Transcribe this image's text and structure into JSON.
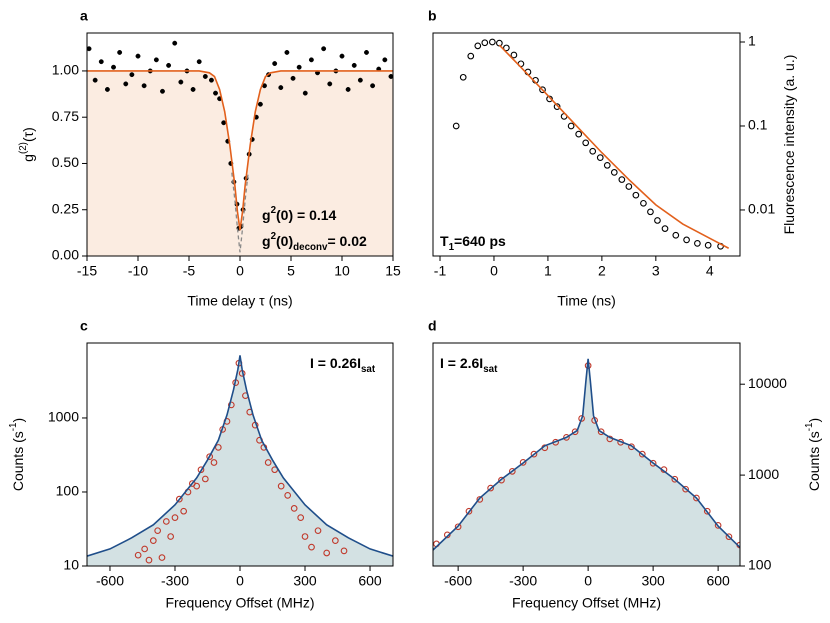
{
  "chart_data": [
    {
      "type": "scatter",
      "panel_label": "a",
      "xlabel": "Time delay τ (ns)",
      "ylabel": [
        {
          "text": "g"
        },
        {
          "text": "(2)",
          "shift": "sup"
        },
        {
          "text": "(τ)"
        }
      ],
      "xlim": [
        -15,
        15
      ],
      "ylim": [
        0,
        1.205
      ],
      "xticks": [
        -15,
        -10,
        -5,
        0,
        5,
        10,
        15
      ],
      "yticks": [
        {
          "value": 0,
          "label": "0.00"
        },
        {
          "value": 0.25,
          "label": "0.25"
        },
        {
          "value": 0.5,
          "label": "0.50"
        },
        {
          "value": 0.75,
          "label": "0.75"
        },
        {
          "value": 1,
          "label": "1.00"
        }
      ],
      "fill": "#fbece1",
      "points": {
        "color": "#000000",
        "hollow": false,
        "x": [
          -14.8,
          -14.2,
          -13.6,
          -13,
          -12.4,
          -11.8,
          -11.2,
          -10.6,
          -10,
          -9.4,
          -8.8,
          -8.2,
          -7.6,
          -7,
          -6.4,
          -5.8,
          -5.2,
          -4.6,
          -4,
          -3.4,
          -2.8,
          -2.4,
          -2,
          -1.6,
          -1.2,
          -0.9,
          -0.6,
          -0.3,
          -0.1,
          0.1,
          0.3,
          0.6,
          0.9,
          1.2,
          1.6,
          2,
          2.4,
          2.8,
          3.4,
          4,
          4.6,
          5.2,
          5.8,
          6.4,
          7,
          7.6,
          8.2,
          8.8,
          9.4,
          10,
          10.6,
          11.2,
          11.8,
          12.4,
          13,
          13.6,
          14.2,
          14.8
        ],
        "y": [
          1.12,
          0.95,
          1.05,
          0.9,
          1.02,
          1.1,
          0.93,
          0.98,
          1.08,
          0.92,
          1.0,
          1.06,
          0.89,
          1.03,
          1.15,
          0.94,
          1.0,
          0.9,
          1.05,
          0.97,
          0.95,
          0.88,
          0.85,
          0.72,
          0.62,
          0.5,
          0.4,
          0.28,
          0.15,
          0.16,
          0.25,
          0.42,
          0.55,
          0.63,
          0.75,
          0.82,
          0.92,
          0.98,
          1.04,
          0.91,
          1.1,
          0.96,
          1.02,
          0.88,
          1.06,
          0.99,
          1.12,
          0.93,
          1.0,
          1.08,
          0.9,
          1.03,
          0.95,
          1.1,
          0.92,
          1.01,
          1.06,
          0.97
        ]
      },
      "fit": {
        "color": "#e2601c",
        "x": [
          -15,
          -4,
          -3,
          -2.5,
          -2,
          -1.5,
          -1,
          -0.5,
          -0.25,
          0,
          0.25,
          0.5,
          1,
          1.5,
          2,
          2.5,
          3,
          4,
          15
        ],
        "y": [
          1,
          1,
          0.99,
          0.97,
          0.9,
          0.78,
          0.6,
          0.38,
          0.24,
          0.14,
          0.24,
          0.38,
          0.6,
          0.78,
          0.9,
          0.97,
          0.99,
          1,
          1
        ]
      },
      "deconv": {
        "color": "#888888",
        "x": [
          -0.8,
          -0.5,
          -0.25,
          0,
          0.25,
          0.5,
          0.8
        ],
        "y": [
          0.45,
          0.3,
          0.15,
          0.02,
          0.15,
          0.3,
          0.45
        ]
      },
      "annotations": [
        [
          {
            "text": "g"
          },
          {
            "text": "2",
            "shift": "sup"
          },
          {
            "text": "(0)"
          },
          {
            "text": "   = 0.14"
          }
        ],
        [
          {
            "text": "g"
          },
          {
            "text": "2",
            "shift": "sup"
          },
          {
            "text": "(0)"
          },
          {
            "text": "deconv",
            "shift": "sub"
          },
          {
            "text": "= 0.02"
          }
        ]
      ]
    },
    {
      "type": "scatter",
      "panel_label": "b",
      "xlabel": "Time (ns)",
      "ylabel": [
        {
          "text": "Fluorescence intensity (a. u.)"
        }
      ],
      "ylog": true,
      "yaxis_side": "right",
      "xlim": [
        -1.13,
        4.56
      ],
      "ylim": [
        0.00283,
        1.28
      ],
      "xticks": [
        -1,
        0,
        1,
        2,
        3,
        4
      ],
      "yticks": [
        0.01,
        0.1,
        1
      ],
      "points": {
        "color": "#000000",
        "hollow": true,
        "x": [
          -0.7,
          -0.57,
          -0.43,
          -0.3,
          -0.17,
          -0.03,
          0.1,
          0.23,
          0.37,
          0.5,
          0.63,
          0.77,
          0.9,
          1.03,
          1.17,
          1.3,
          1.43,
          1.57,
          1.7,
          1.83,
          1.97,
          2.1,
          2.23,
          2.37,
          2.5,
          2.63,
          2.77,
          2.9,
          3.03,
          3.17,
          3.37,
          3.57,
          3.77,
          3.97,
          4.2
        ],
        "y": [
          0.1,
          0.38,
          0.68,
          0.9,
          0.98,
          1.0,
          0.97,
          0.85,
          0.7,
          0.55,
          0.44,
          0.35,
          0.27,
          0.21,
          0.17,
          0.13,
          0.1,
          0.08,
          0.063,
          0.05,
          0.042,
          0.034,
          0.028,
          0.023,
          0.019,
          0.015,
          0.012,
          0.0095,
          0.0075,
          0.006,
          0.005,
          0.0044,
          0.004,
          0.0038,
          0.0037
        ]
      },
      "fit": {
        "color": "#e2601c",
        "x": [
          0.1,
          0.5,
          1,
          1.5,
          2,
          2.5,
          3,
          3.5,
          4,
          4.35
        ],
        "y": [
          0.92,
          0.5,
          0.23,
          0.105,
          0.048,
          0.023,
          0.0115,
          0.0068,
          0.0046,
          0.0035
        ]
      },
      "annotations": [
        [
          {
            "text": "T"
          },
          {
            "text": "1",
            "shift": "sub"
          },
          {
            "text": "=640 ps"
          }
        ]
      ]
    },
    {
      "type": "scatter",
      "panel_label": "c",
      "xlabel": "Frequency Offset (MHz)",
      "ylabel": [
        {
          "text": "Counts (s"
        },
        {
          "text": "-1",
          "shift": "sup"
        },
        {
          "text": ")"
        }
      ],
      "ylog": true,
      "xlim": [
        -706,
        706
      ],
      "ylim": [
        10,
        10300
      ],
      "xticks": [
        -600,
        -300,
        0,
        300,
        600
      ],
      "yticks": [
        10,
        100,
        1000
      ],
      "fill": "#d3e1e3",
      "points": {
        "color": "#c0392b",
        "hollow": true,
        "x": [
          -470,
          -440,
          -420,
          -400,
          -380,
          -360,
          -340,
          -320,
          -300,
          -280,
          -260,
          -240,
          -220,
          -200,
          -180,
          -160,
          -140,
          -120,
          -100,
          -80,
          -60,
          -40,
          -20,
          -5,
          10,
          25,
          45,
          70,
          90,
          110,
          130,
          160,
          190,
          220,
          250,
          280,
          300,
          330,
          360,
          400,
          440,
          480
        ],
        "y": [
          14,
          17,
          12,
          22,
          30,
          13,
          40,
          25,
          45,
          80,
          55,
          100,
          130,
          120,
          200,
          150,
          300,
          250,
          400,
          700,
          900,
          1500,
          3000,
          5500,
          4000,
          2000,
          1200,
          800,
          500,
          400,
          250,
          200,
          120,
          90,
          60,
          45,
          25,
          18,
          30,
          15,
          22,
          16
        ]
      },
      "fit": {
        "color": "#1f4e8a",
        "x": [
          -706,
          -600,
          -500,
          -400,
          -300,
          -200,
          -150,
          -100,
          -60,
          -30,
          -10,
          0,
          10,
          30,
          60,
          100,
          150,
          200,
          300,
          400,
          500,
          600,
          706
        ],
        "y": [
          13.6,
          17,
          24,
          36,
          67,
          155,
          270,
          500,
          1100,
          2400,
          4500,
          7000,
          4500,
          2400,
          1100,
          500,
          270,
          155,
          67,
          36,
          24,
          17,
          13.6
        ]
      },
      "annotations": [
        [
          {
            "text": "I = 0.26I"
          },
          {
            "text": "sat",
            "shift": "sub"
          }
        ]
      ]
    },
    {
      "type": "scatter",
      "panel_label": "d",
      "xlabel": "Frequency Offset (MHz)",
      "ylabel": [
        {
          "text": "Counts (s"
        },
        {
          "text": "-1",
          "shift": "sup"
        },
        {
          "text": ")"
        }
      ],
      "ylog": true,
      "yaxis_side": "right",
      "xlim": [
        -716,
        701
      ],
      "ylim": [
        100,
        28400
      ],
      "xticks": [
        -600,
        -300,
        0,
        300,
        600
      ],
      "yticks": [
        100,
        1000,
        10000
      ],
      "fill": "#d3e1e3",
      "points": {
        "color": "#c0392b",
        "hollow": true,
        "x": [
          -700,
          -650,
          -600,
          -550,
          -500,
          -450,
          -400,
          -350,
          -300,
          -250,
          -200,
          -150,
          -100,
          -60,
          -30,
          0,
          30,
          60,
          100,
          150,
          200,
          250,
          300,
          350,
          400,
          450,
          500,
          550,
          600,
          650,
          700
        ],
        "y": [
          175,
          220,
          270,
          400,
          540,
          720,
          880,
          1100,
          1380,
          1700,
          2000,
          2300,
          2600,
          3000,
          4200,
          16000,
          4000,
          3000,
          2500,
          2300,
          2050,
          1700,
          1350,
          1150,
          900,
          700,
          560,
          400,
          280,
          210,
          170
        ]
      },
      "fit": {
        "color": "#1f4e8a",
        "x": [
          -716,
          -600,
          -500,
          -400,
          -300,
          -200,
          -100,
          -50,
          -25,
          -10,
          0,
          10,
          25,
          50,
          100,
          200,
          300,
          400,
          500,
          600,
          701
        ],
        "y": [
          150,
          275,
          560,
          900,
          1360,
          2100,
          2600,
          3100,
          4500,
          11000,
          19000,
          11000,
          4500,
          3100,
          2600,
          2100,
          1360,
          900,
          560,
          275,
          160
        ]
      },
      "annotations": [
        [
          {
            "text": "I = 2.6I"
          },
          {
            "text": "sat",
            "shift": "sub"
          }
        ]
      ]
    }
  ]
}
